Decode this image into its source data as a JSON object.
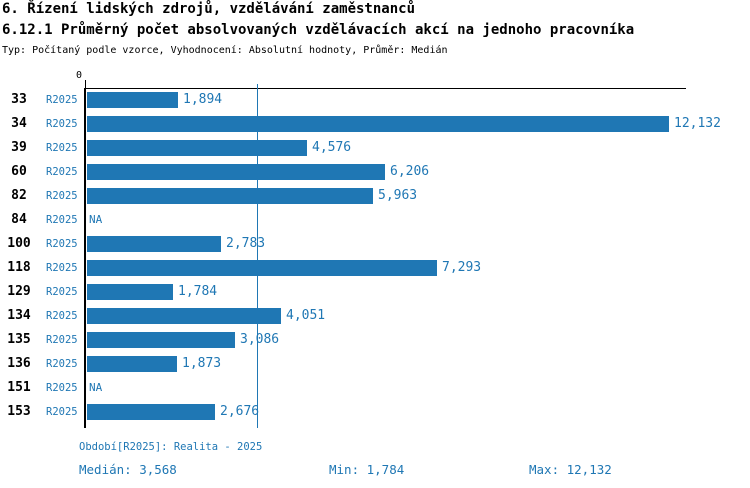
{
  "header": {
    "title": "6. Řízení lidských zdrojů, vzdělávání zaměstnanců",
    "chart_title": "6.12.1 Průměrný počet absolvovaných vzdělávacích akcí na jednoho pracovníka",
    "meta": "Typ: Počítaný podle vzorce, Vyhodnocení: Absolutní hodnoty, Průměr: Medián"
  },
  "chart_data": {
    "type": "bar",
    "orientation": "horizontal",
    "series_name": "R2025",
    "title": "6.12.1 Průměrný počet absolvovaných vzdělávacích akcí na jednoho pracovníka",
    "xlabel": "",
    "ylabel": "",
    "axis": {
      "zero_label": "0",
      "x_min": 0,
      "x_max_approx": 12.5,
      "grid": false
    },
    "median_line": {
      "value": 3.568,
      "display": "3,568"
    },
    "legend_position": "none",
    "rows": [
      {
        "id": "33",
        "series": "R2025",
        "value": 1.894,
        "display": "1,894"
      },
      {
        "id": "34",
        "series": "R2025",
        "value": 12.132,
        "display": "12,132"
      },
      {
        "id": "39",
        "series": "R2025",
        "value": 4.576,
        "display": "4,576"
      },
      {
        "id": "60",
        "series": "R2025",
        "value": 6.206,
        "display": "6,206"
      },
      {
        "id": "82",
        "series": "R2025",
        "value": 5.963,
        "display": "5,963"
      },
      {
        "id": "84",
        "series": "R2025",
        "value": null,
        "display": "NA"
      },
      {
        "id": "100",
        "series": "R2025",
        "value": 2.783,
        "display": "2,783"
      },
      {
        "id": "118",
        "series": "R2025",
        "value": 7.293,
        "display": "7,293"
      },
      {
        "id": "129",
        "series": "R2025",
        "value": 1.784,
        "display": "1,784"
      },
      {
        "id": "134",
        "series": "R2025",
        "value": 4.051,
        "display": "4,051"
      },
      {
        "id": "135",
        "series": "R2025",
        "value": 3.086,
        "display": "3,086"
      },
      {
        "id": "136",
        "series": "R2025",
        "value": 1.873,
        "display": "1,873"
      },
      {
        "id": "151",
        "series": "R2025",
        "value": null,
        "display": "NA"
      },
      {
        "id": "153",
        "series": "R2025",
        "value": 2.676,
        "display": "2,676"
      }
    ]
  },
  "footer": {
    "period": "Období[R2025]: Realita - 2025",
    "median": "Medián: 3,568",
    "min": "Min: 1,784",
    "max": "Max: 12,132"
  },
  "colors": {
    "bar": "#1f77b4",
    "blue_text": "#1f77b4",
    "axis": "#000000",
    "background": "#ffffff"
  }
}
